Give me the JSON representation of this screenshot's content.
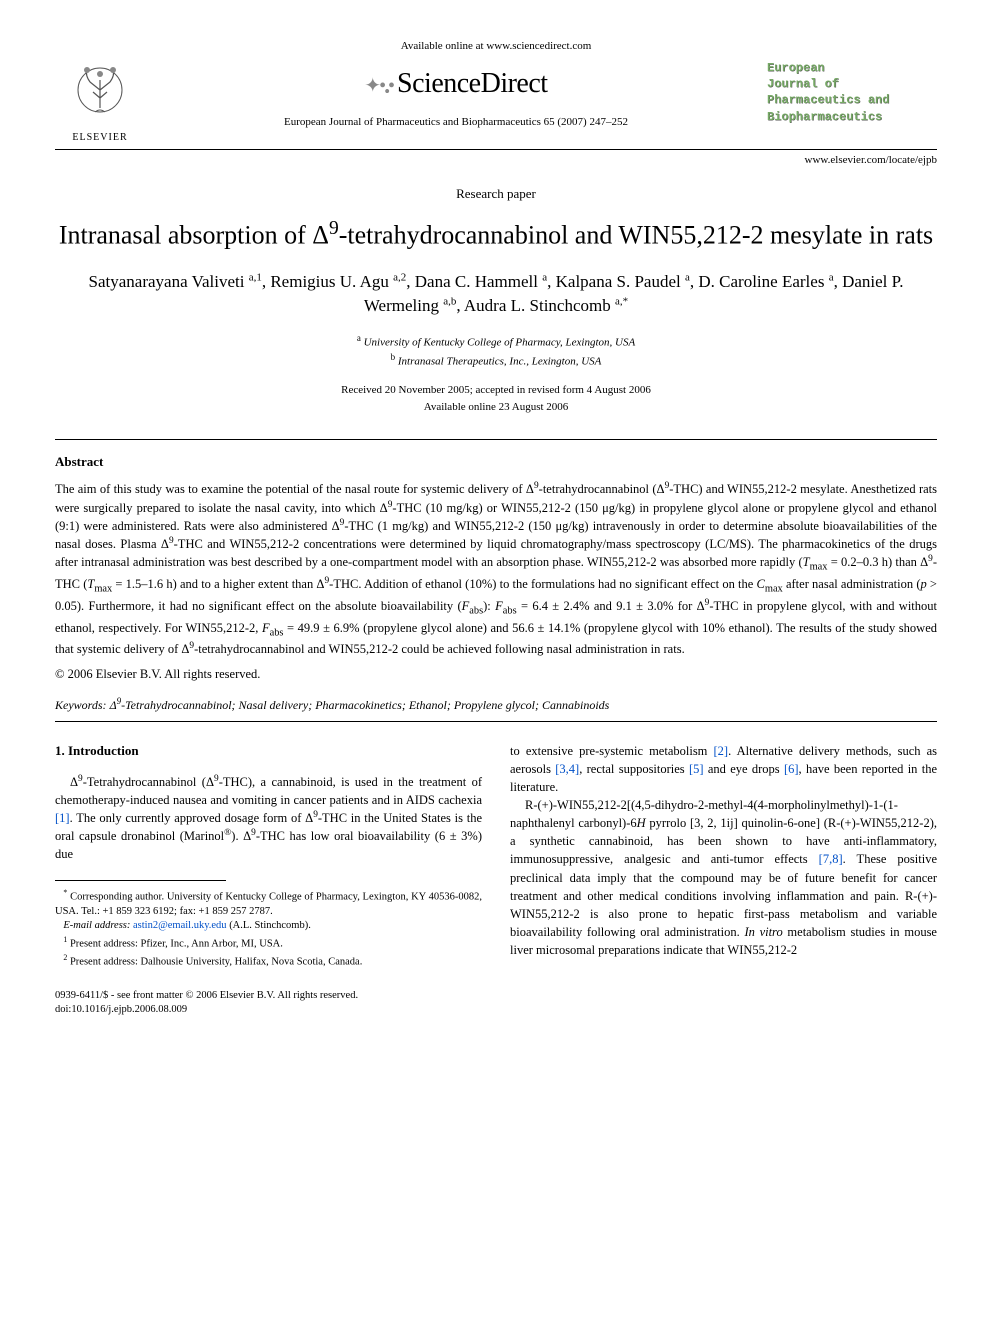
{
  "top_line": "Available online at www.sciencedirect.com",
  "brand": "ScienceDirect",
  "elsevier": "ELSEVIER",
  "journal_citation": "European Journal of Pharmaceutics and Biopharmaceutics 65 (2007) 247–252",
  "journal_box_lines": [
    "European",
    "Journal of",
    "Pharmaceutics and",
    "Biopharmaceutics"
  ],
  "journal_url": "www.elsevier.com/locate/ejpb",
  "paper_type": "Research paper",
  "title_html": "Intranasal absorption of Δ<sup>9</sup>-tetrahydrocannabinol and WIN55,212-2 mesylate in rats",
  "authors_html": "Satyanarayana Valiveti <sup>a,1</sup>, Remigius U. Agu <sup>a,2</sup>, Dana C. Hammell <sup>a</sup>, Kalpana S. Paudel <sup>a</sup>, D. Caroline Earles <sup>a</sup>, Daniel P. Wermeling <sup>a,b</sup>, Audra L. Stinchcomb <sup>a,*</sup>",
  "affiliations": [
    {
      "sup": "a",
      "text": "University of Kentucky College of Pharmacy, Lexington, USA"
    },
    {
      "sup": "b",
      "text": "Intranasal Therapeutics, Inc., Lexington, USA"
    }
  ],
  "dates": [
    "Received 20 November 2005; accepted in revised form 4 August 2006",
    "Available online 23 August 2006"
  ],
  "abstract_head": "Abstract",
  "abstract_html": "The aim of this study was to examine the potential of the nasal route for systemic delivery of Δ<sup>9</sup>-tetrahydrocannabinol (Δ<sup>9</sup>-THC) and WIN55,212-2 mesylate. Anesthetized rats were surgically prepared to isolate the nasal cavity, into which Δ<sup>9</sup>-THC (10 mg/kg) or WIN55,212-2 (150 μg/kg) in propylene glycol alone or propylene glycol and ethanol (9:1) were administered. Rats were also administered Δ<sup>9</sup>-THC (1 mg/kg) and WIN55,212-2 (150 μg/kg) intravenously in order to determine absolute bioavailabilities of the nasal doses. Plasma Δ<sup>9</sup>-THC and WIN55,212-2 concentrations were determined by liquid chromatography/mass spectroscopy (LC/MS). The pharmacokinetics of the drugs after intranasal administration was best described by a one-compartment model with an absorption phase. WIN55,212-2 was absorbed more rapidly (<i>T</i><sub>max</sub> = 0.2–0.3 h) than Δ<sup>9</sup>-THC (<i>T</i><sub>max</sub> = 1.5–1.6 h) and to a higher extent than Δ<sup>9</sup>-THC. Addition of ethanol (10%) to the formulations had no significant effect on the <i>C</i><sub>max</sub> after nasal administration (<i>p</i> > 0.05). Furthermore, it had no significant effect on the absolute bioavailability (<i>F</i><sub>abs</sub>): <i>F</i><sub>abs</sub> = 6.4 ± 2.4% and 9.1 ± 3.0% for Δ<sup>9</sup>-THC in propylene glycol, with and without ethanol, respectively. For WIN55,212-2, <i>F</i><sub>abs</sub> = 49.9 ± 6.9% (propylene glycol alone) and 56.6 ± 14.1% (propylene glycol with 10% ethanol). The results of the study showed that systemic delivery of Δ<sup>9</sup>-tetrahydrocannabinol and WIN55,212-2 could be achieved following nasal administration in rats.",
  "copyright": "© 2006 Elsevier B.V. All rights reserved.",
  "keywords_label": "Keywords:",
  "keywords_html": "Δ<sup>9</sup>-Tetrahydrocannabinol; Nasal delivery; Pharmacokinetics; Ethanol; Propylene glycol; Cannabinoids",
  "intro_head": "1. Introduction",
  "col1_html": "Δ<sup>9</sup>-Tetrahydrocannabinol (Δ<sup>9</sup>-THC), a cannabinoid, is used in the treatment of chemotherapy-induced nausea and vomiting in cancer patients and in AIDS cachexia <span class=\"ref-link\">[1]</span>. The only currently approved dosage form of Δ<sup>9</sup>-THC in the United States is the oral capsule dronabinol (Marinol<sup>®</sup>). Δ<sup>9</sup>-THC has low oral bioavailability (6 ± 3%) due",
  "col2_p1_html": "to extensive pre-systemic metabolism <span class=\"ref-link\">[2]</span>. Alternative delivery methods, such as aerosols <span class=\"ref-link\">[3,4]</span>, rectal suppositories <span class=\"ref-link\">[5]</span> and eye drops <span class=\"ref-link\">[6]</span>, have been reported in the literature.",
  "col2_p2_html": "R-(+)-WIN55,212-2[(4,5-dihydro-2-methyl-4(4-morpholinylmethyl)-1-(1-naphthalenyl carbonyl)-6<i>H</i> pyrrolo [3, 2, 1ij] quinolin-6-one] (R-(+)-WIN55,212-2), a synthetic cannabinoid, has been shown to have anti-inflammatory, immunosuppressive, analgesic and anti-tumor effects <span class=\"ref-link\">[7,8]</span>. These positive preclinical data imply that the compound may be of future benefit for cancer treatment and other medical conditions involving inflammation and pain. R-(+)-WIN55,212-2 is also prone to hepatic first-pass metabolism and variable bioavailability following oral administration. <i>In vitro</i> metabolism studies in mouse liver microsomal preparations indicate that WIN55,212-2",
  "footnotes": {
    "corr_html": "<sup>*</sup> Corresponding author. University of Kentucky College of Pharmacy, Lexington, KY 40536-0082, USA. Tel.: +1 859 323 6192; fax: +1 859 257 2787.",
    "email_label": "E-mail address:",
    "email": "astin2@email.uky.edu",
    "email_name": "(A.L. Stinchcomb).",
    "fn1": "Present address: Pfizer, Inc., Ann Arbor, MI, USA.",
    "fn2": "Present address: Dalhousie University, Halifax, Nova Scotia, Canada."
  },
  "footer": {
    "line1": "0939-6411/$ - see front matter © 2006 Elsevier B.V. All rights reserved.",
    "line2": "doi:10.1016/j.ejpb.2006.08.009"
  },
  "colors": {
    "link": "#0050c8",
    "journal_box": "#7a6"
  }
}
